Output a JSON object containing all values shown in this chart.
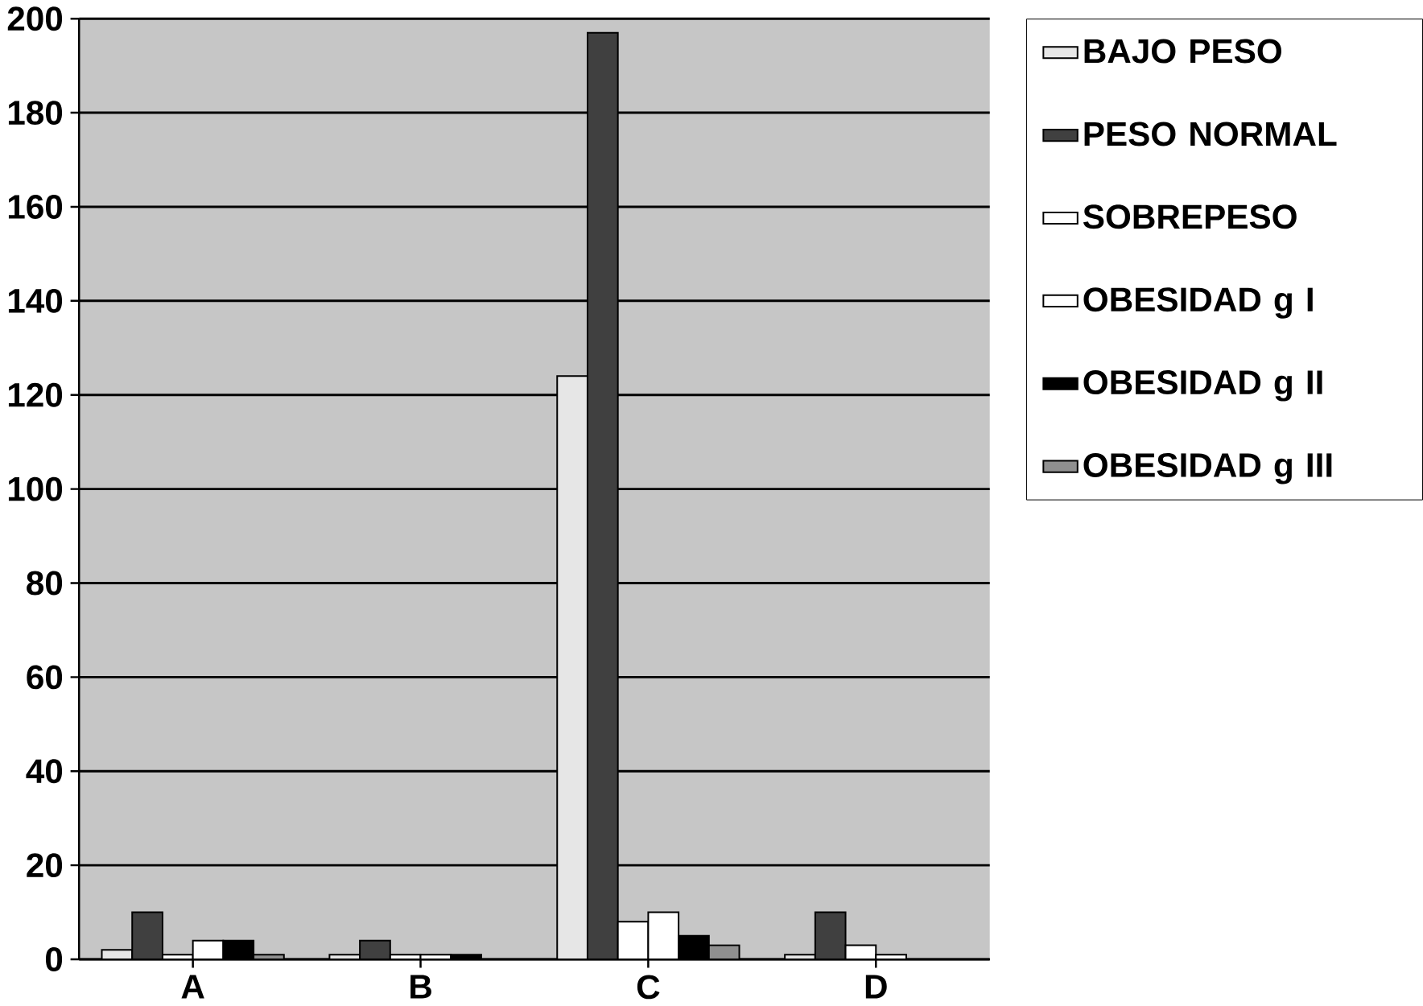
{
  "chart_data": {
    "type": "bar",
    "categories": [
      "A",
      "B",
      "C",
      "D"
    ],
    "series": [
      {
        "name": "BAJO PESO",
        "color": "#e6e6e6",
        "values": [
          2,
          1,
          124,
          1
        ]
      },
      {
        "name": "PESO NORMAL",
        "color": "#404040",
        "values": [
          10,
          4,
          197,
          10
        ]
      },
      {
        "name": "SOBREPESO",
        "color": "#ffffff",
        "values": [
          1,
          1,
          8,
          3
        ]
      },
      {
        "name": "OBESIDAD g I",
        "color": "#ffffff",
        "values": [
          4,
          1,
          10,
          1
        ]
      },
      {
        "name": "OBESIDAD g II",
        "color": "#000000",
        "values": [
          4,
          1,
          5,
          0
        ]
      },
      {
        "name": "OBESIDAD g III",
        "color": "#909090",
        "values": [
          1,
          0,
          3,
          0
        ]
      }
    ],
    "ylim": [
      0,
      200
    ],
    "yticks": [
      0,
      20,
      40,
      60,
      80,
      100,
      120,
      140,
      160,
      180,
      200
    ],
    "grid": "y",
    "legend": "right"
  }
}
